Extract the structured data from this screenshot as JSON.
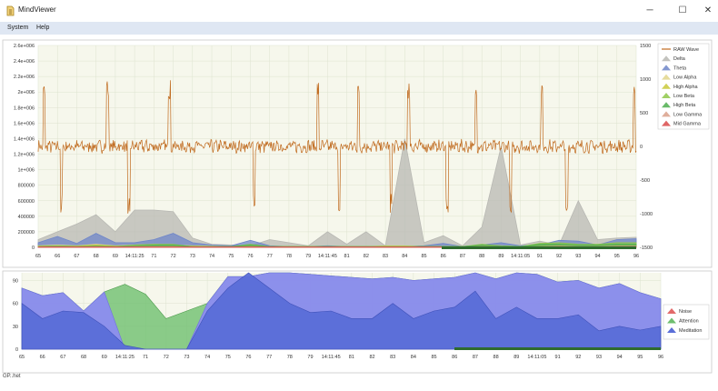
{
  "window": {
    "title": "MindViewer",
    "minimize_icon": "─",
    "maximize_icon": "☐",
    "close_icon": "✕"
  },
  "menu": {
    "items": [
      "System",
      "Help"
    ]
  },
  "status": {
    "text": "GP..het"
  },
  "colors": {
    "raw": "#c06a1e",
    "delta": "#b8b8b3",
    "theta": "#6f86c8",
    "low_alpha": "#e2d68c",
    "high_alpha": "#c9c93a",
    "low_beta": "#8fc84a",
    "high_beta": "#4fae4f",
    "low_gamma": "#d9a08a",
    "mid_gamma": "#d94a4a",
    "noise": "#e26a6a",
    "attention": "#6fbf6f",
    "meditation": "#5a6ed8",
    "meditation_light": "#8c8cf0",
    "plot_bg": "#f6f7ec",
    "grid": "#dde3cf"
  },
  "chart_data": [
    {
      "type": "area",
      "name": "eeg-power",
      "y_ticks": [
        "2.6e+006",
        "2.4e+006",
        "2.2e+006",
        "2e+006",
        "1.8e+006",
        "1.6e+006",
        "1.4e+006",
        "1.2e+006",
        "1e+006",
        "800000",
        "600000",
        "400000",
        "200000",
        "0"
      ],
      "y_range": [
        0,
        2600000
      ],
      "y2_ticks": [
        "1500",
        "1000",
        "500",
        "0",
        "-500",
        "-1000",
        "-1500"
      ],
      "y2_range": [
        -1500,
        1500
      ],
      "x_labels": [
        "65",
        "66",
        "67",
        "68",
        "69",
        "14:11:25",
        "71",
        "72",
        "73",
        "74",
        "75",
        "76",
        "77",
        "78",
        "79",
        "14:11:45",
        "81",
        "82",
        "83",
        "84",
        "85",
        "86",
        "87",
        "88",
        "89",
        "14:11:05",
        "91",
        "92",
        "93",
        "94",
        "95",
        "96"
      ],
      "legend": [
        "RAW Wave",
        "Delta",
        "Theta",
        "Low Alpha",
        "High Alpha",
        "Low Beta",
        "High Beta",
        "Low Gamma",
        "Mid Gamma"
      ],
      "raw_spike_positions": [
        65.3,
        66.2,
        68.6,
        69.7,
        71.8,
        76.2,
        79.5,
        80.6,
        81.6,
        83.3,
        84.2,
        86.2,
        87.7,
        89.5,
        91.1,
        92.4,
        95.9
      ],
      "series": [
        {
          "name": "Delta",
          "values": [
            100000,
            200000,
            300000,
            420000,
            200000,
            480000,
            480000,
            460000,
            120000,
            40000,
            30000,
            20000,
            100000,
            60000,
            20000,
            200000,
            40000,
            200000,
            20000,
            1400000,
            60000,
            150000,
            20000,
            260000,
            1300000,
            30000,
            80000,
            30000,
            600000,
            100000,
            120000,
            130000
          ]
        },
        {
          "name": "Theta",
          "values": [
            60000,
            140000,
            50000,
            180000,
            60000,
            60000,
            100000,
            180000,
            60000,
            30000,
            20000,
            90000,
            20000,
            10000,
            10000,
            20000,
            10000,
            10000,
            10000,
            10000,
            20000,
            50000,
            10000,
            30000,
            60000,
            20000,
            30000,
            90000,
            80000,
            30000,
            100000,
            110000
          ]
        },
        {
          "name": "Low Alpha",
          "values": [
            20000,
            30000,
            20000,
            40000,
            20000,
            30000,
            40000,
            30000,
            20000,
            15000,
            10000,
            20000,
            10000,
            10000,
            10000,
            10000,
            10000,
            10000,
            20000,
            20000,
            10000,
            10000,
            10000,
            20000,
            20000,
            10000,
            20000,
            30000,
            20000,
            20000,
            30000,
            30000
          ]
        },
        {
          "name": "High Alpha",
          "values": [
            15000,
            20000,
            15000,
            30000,
            15000,
            20000,
            25000,
            20000,
            15000,
            10000,
            10000,
            15000,
            10000,
            10000,
            10000,
            10000,
            10000,
            10000,
            15000,
            15000,
            10000,
            10000,
            10000,
            15000,
            15000,
            10000,
            15000,
            20000,
            15000,
            15000,
            20000,
            20000
          ]
        },
        {
          "name": "Low Beta",
          "values": [
            10000,
            20000,
            10000,
            20000,
            10000,
            30000,
            40000,
            40000,
            10000,
            10000,
            10000,
            40000,
            10000,
            10000,
            10000,
            10000,
            10000,
            10000,
            10000,
            10000,
            10000,
            10000,
            10000,
            40000,
            20000,
            10000,
            50000,
            60000,
            40000,
            40000,
            60000,
            60000
          ]
        },
        {
          "name": "High Beta",
          "values": [
            10000,
            15000,
            10000,
            15000,
            10000,
            20000,
            30000,
            30000,
            10000,
            10000,
            10000,
            30000,
            10000,
            10000,
            10000,
            10000,
            10000,
            10000,
            10000,
            10000,
            10000,
            10000,
            10000,
            30000,
            15000,
            10000,
            40000,
            40000,
            30000,
            30000,
            40000,
            40000
          ]
        },
        {
          "name": "Low Gamma",
          "values": [
            5000,
            8000,
            5000,
            8000,
            5000,
            10000,
            10000,
            10000,
            5000,
            5000,
            5000,
            10000,
            5000,
            5000,
            5000,
            5000,
            5000,
            5000,
            5000,
            5000,
            5000,
            5000,
            5000,
            10000,
            8000,
            5000,
            10000,
            15000,
            10000,
            10000,
            15000,
            15000
          ]
        },
        {
          "name": "Mid Gamma",
          "values": [
            3000,
            5000,
            3000,
            5000,
            3000,
            5000,
            5000,
            5000,
            3000,
            3000,
            3000,
            5000,
            3000,
            3000,
            3000,
            3000,
            3000,
            3000,
            3000,
            3000,
            3000,
            3000,
            3000,
            5000,
            5000,
            3000,
            5000,
            8000,
            5000,
            5000,
            8000,
            8000
          ]
        }
      ]
    },
    {
      "type": "area",
      "name": "esense",
      "y_ticks": [
        "90",
        "60",
        "30",
        "0"
      ],
      "y_range": [
        0,
        100
      ],
      "x_labels": [
        "65",
        "66",
        "67",
        "68",
        "69",
        "14:11:25",
        "71",
        "72",
        "73",
        "74",
        "75",
        "76",
        "77",
        "78",
        "79",
        "14:11:45",
        "81",
        "82",
        "83",
        "84",
        "85",
        "86",
        "87",
        "88",
        "89",
        "14:11:05",
        "91",
        "92",
        "93",
        "94",
        "95",
        "96"
      ],
      "legend": [
        "Noise",
        "Attention",
        "Meditation"
      ],
      "series": [
        {
          "name": "Attention",
          "values": [
            80,
            70,
            74,
            50,
            75,
            85,
            72,
            40,
            50,
            60,
            95,
            95,
            100,
            100,
            98,
            96,
            94,
            92,
            94,
            90,
            92,
            94,
            100,
            92,
            100,
            98,
            88,
            90,
            80,
            86,
            74,
            66
          ]
        },
        {
          "name": "Meditation",
          "values": [
            60,
            40,
            50,
            48,
            30,
            5,
            0,
            0,
            0,
            50,
            80,
            100,
            80,
            60,
            48,
            50,
            40,
            40,
            60,
            40,
            50,
            55,
            76,
            40,
            55,
            40,
            40,
            45,
            24,
            30,
            25,
            30
          ]
        }
      ]
    }
  ]
}
